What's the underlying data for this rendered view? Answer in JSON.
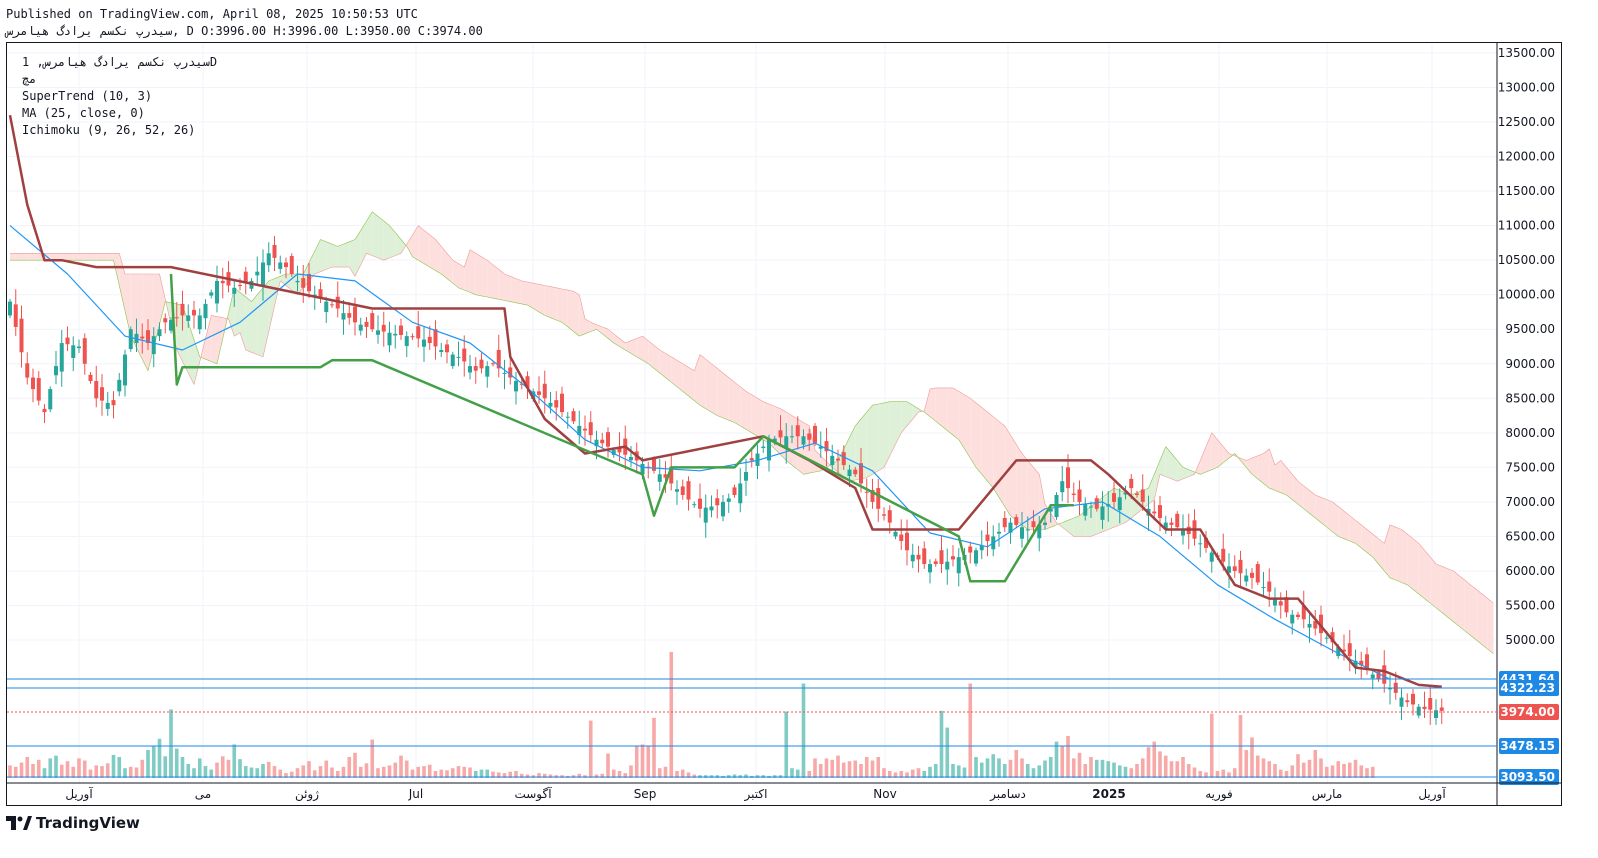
{
  "header": {
    "published": "Published on TradingView.com, April 08, 2025 10:50:53 UTC",
    "ohlc": "سیدرپ نکسم یرادگ هیامرس, D O:3996.00 H:3996.00 L:3950.00 C:3974.00"
  },
  "legend": {
    "symbol": "سیدرپ نکسم یرادگ هیامرس, 1D",
    "exchange": "مچ",
    "supertrend": "SuperTrend (10, 3)",
    "ma": "MA (25, close, 0)",
    "ichimoku": "Ichimoku (9, 26, 52, 26)"
  },
  "footer": {
    "brand": "TradingView"
  },
  "colors": {
    "up": "#26a69a",
    "down": "#ef5350",
    "supertrend_up": "#43a047",
    "supertrend_down": "#a04040",
    "ma": "#2196f3",
    "cloud_bull": "#dff0d8",
    "cloud_bear": "#fde0dd",
    "hline": "#1e88e5",
    "last_price": "#ef5350"
  },
  "chart_data": {
    "type": "candlestick",
    "y_ticks": [
      "13500.00",
      "13000.00",
      "12500.00",
      "12000.00",
      "11500.00",
      "11000.00",
      "10500.00",
      "10000.00",
      "9500.00",
      "9000.00",
      "8500.00",
      "8000.00",
      "7500.00",
      "7000.00",
      "6500.00",
      "6000.00",
      "5500.00",
      "5000.00"
    ],
    "y_range": [
      4300,
      13700
    ],
    "x_labels": [
      "آوریل",
      "می",
      "ژوئن",
      "Jul",
      "آگوست",
      "Sep",
      "اکتبر",
      "Nov",
      "دسامبر",
      "2025",
      "فوریه",
      "مارس",
      "آوریل"
    ],
    "price_labels": [
      {
        "value": 4431.64,
        "text": "4431.64",
        "kind": "line"
      },
      {
        "value": 4322.23,
        "text": "4322.23",
        "kind": "line"
      },
      {
        "value": 3974.0,
        "text": "3974.00",
        "kind": "last"
      },
      {
        "value": 3478.15,
        "text": "3478.15",
        "kind": "line"
      },
      {
        "value": 3093.5,
        "text": "3093.50",
        "kind": "line"
      }
    ],
    "close_path": [
      [
        0,
        9900
      ],
      [
        3,
        8800
      ],
      [
        6,
        8300
      ],
      [
        9,
        9300
      ],
      [
        12,
        9250
      ],
      [
        15,
        8500
      ],
      [
        18,
        8400
      ],
      [
        21,
        9500
      ],
      [
        24,
        9300
      ],
      [
        27,
        9600
      ],
      [
        30,
        9700
      ],
      [
        33,
        9700
      ],
      [
        36,
        10200
      ],
      [
        39,
        10100
      ],
      [
        42,
        10200
      ],
      [
        45,
        10600
      ],
      [
        48,
        10400
      ],
      [
        51,
        10100
      ],
      [
        54,
        9950
      ],
      [
        57,
        9800
      ],
      [
        60,
        9600
      ],
      [
        63,
        9500
      ],
      [
        66,
        9450
      ],
      [
        69,
        9400
      ],
      [
        72,
        9350
      ],
      [
        75,
        9200
      ],
      [
        78,
        9100
      ],
      [
        81,
        8900
      ],
      [
        84,
        9000
      ],
      [
        87,
        8800
      ],
      [
        90,
        8650
      ],
      [
        93,
        8500
      ],
      [
        96,
        8300
      ],
      [
        99,
        8100
      ],
      [
        102,
        7900
      ],
      [
        105,
        7750
      ],
      [
        108,
        7650
      ],
      [
        111,
        7500
      ],
      [
        114,
        7350
      ],
      [
        117,
        7100
      ],
      [
        120,
        6900
      ],
      [
        123,
        6950
      ],
      [
        126,
        7100
      ],
      [
        129,
        7600
      ],
      [
        132,
        7900
      ],
      [
        135,
        7950
      ],
      [
        138,
        7950
      ],
      [
        141,
        7800
      ],
      [
        144,
        7600
      ],
      [
        147,
        7400
      ],
      [
        150,
        7000
      ],
      [
        153,
        6700
      ],
      [
        156,
        6300
      ],
      [
        159,
        6100
      ],
      [
        162,
        6100
      ],
      [
        165,
        6200
      ],
      [
        168,
        6300
      ],
      [
        171,
        6500
      ],
      [
        174,
        6700
      ],
      [
        177,
        6600
      ],
      [
        180,
        6700
      ],
      [
        183,
        7300
      ],
      [
        186,
        7000
      ],
      [
        189,
        6900
      ],
      [
        192,
        7000
      ],
      [
        195,
        7200
      ],
      [
        198,
        6900
      ],
      [
        201,
        6700
      ],
      [
        204,
        6600
      ],
      [
        207,
        6400
      ],
      [
        210,
        6200
      ],
      [
        213,
        6000
      ],
      [
        216,
        5900
      ],
      [
        219,
        5700
      ],
      [
        222,
        5400
      ],
      [
        225,
        5300
      ],
      [
        228,
        5100
      ],
      [
        231,
        4900
      ],
      [
        234,
        4700
      ],
      [
        237,
        4500
      ],
      [
        240,
        4300
      ],
      [
        243,
        4100
      ],
      [
        246,
        4000
      ],
      [
        249,
        3974
      ]
    ],
    "ma_path": [
      [
        0,
        11000
      ],
      [
        10,
        10300
      ],
      [
        20,
        9400
      ],
      [
        30,
        9200
      ],
      [
        40,
        9600
      ],
      [
        50,
        10300
      ],
      [
        60,
        10200
      ],
      [
        70,
        9600
      ],
      [
        80,
        9300
      ],
      [
        90,
        8650
      ],
      [
        100,
        7900
      ],
      [
        110,
        7500
      ],
      [
        120,
        7450
      ],
      [
        130,
        7600
      ],
      [
        140,
        7850
      ],
      [
        150,
        7450
      ],
      [
        160,
        6550
      ],
      [
        170,
        6350
      ],
      [
        180,
        6900
      ],
      [
        190,
        7000
      ],
      [
        200,
        6500
      ],
      [
        210,
        5800
      ],
      [
        220,
        5300
      ],
      [
        230,
        4850
      ],
      [
        240,
        4431.64
      ]
    ],
    "supertrend_down": [
      [
        0,
        12600
      ],
      [
        3,
        11300
      ],
      [
        6,
        10500
      ],
      [
        9,
        10500
      ],
      [
        15,
        10400
      ],
      [
        28,
        10400
      ],
      [
        63,
        9800
      ],
      [
        80,
        9800
      ],
      [
        86,
        9800
      ],
      [
        87,
        9100
      ],
      [
        93,
        8200
      ],
      [
        100,
        7700
      ],
      [
        107,
        7800
      ],
      [
        110,
        7600
      ],
      [
        131,
        7950
      ],
      [
        139,
        7600
      ],
      [
        147,
        7200
      ],
      [
        150,
        6600
      ],
      [
        165,
        6600
      ],
      [
        175,
        7600
      ],
      [
        188,
        7600
      ],
      [
        191,
        7400
      ],
      [
        201,
        6600
      ],
      [
        207,
        6600
      ],
      [
        213,
        5800
      ],
      [
        219,
        5600
      ],
      [
        224,
        5600
      ],
      [
        229,
        5100
      ],
      [
        234,
        4600
      ],
      [
        239,
        4550
      ],
      [
        245,
        4350
      ],
      [
        249,
        4322.23
      ]
    ],
    "supertrend_up": [
      [
        28,
        10300
      ],
      [
        29,
        8700
      ],
      [
        30,
        8950
      ],
      [
        54,
        8950
      ],
      [
        56,
        9050
      ],
      [
        63,
        9050
      ],
      [
        110,
        7400
      ],
      [
        112,
        6800
      ],
      [
        115,
        7500
      ],
      [
        126,
        7500
      ],
      [
        131,
        7950
      ],
      [
        165,
        6500
      ],
      [
        167,
        5850
      ],
      [
        173,
        5850
      ],
      [
        181,
        6950
      ],
      [
        185,
        6950
      ]
    ],
    "volumes": [
      18,
      16,
      22,
      30,
      20,
      26,
      14,
      28,
      32,
      19,
      24,
      16,
      28,
      25,
      12,
      18,
      17,
      21,
      33,
      30,
      14,
      16,
      15,
      26,
      40,
      45,
      56,
      31,
      40,
      42,
      30,
      20,
      14,
      28,
      17,
      12,
      22,
      31,
      26,
      48,
      27,
      17,
      15,
      14,
      20,
      23,
      17,
      12,
      7,
      9,
      14,
      18,
      24,
      11,
      17,
      25,
      15,
      10,
      16,
      30,
      36,
      16,
      21,
      55,
      14,
      16,
      18,
      22,
      32,
      25,
      12,
      16,
      17,
      19,
      10,
      12,
      11,
      14,
      17,
      16,
      15,
      10,
      12,
      12,
      9,
      8,
      7,
      9,
      10,
      6,
      5,
      4,
      7,
      6,
      5,
      4,
      4,
      3,
      4,
      6,
      4,
      8,
      5,
      6,
      35,
      12,
      10,
      7,
      18,
      45,
      48,
      46,
      86,
      14,
      16,
      18,
      10,
      12,
      8,
      5,
      4,
      4,
      4,
      4,
      3,
      4,
      5,
      4,
      5,
      3,
      4,
      4,
      3,
      4,
      4,
      95,
      14,
      12,
      8,
      10,
      28,
      20,
      28,
      26,
      32,
      22,
      24,
      25,
      20,
      30,
      25,
      30,
      14,
      10,
      8,
      10,
      8,
      12,
      14,
      10,
      16,
      20,
      96,
      72,
      20,
      18,
      15,
      16,
      30,
      22,
      28,
      34,
      28,
      20,
      26,
      40,
      28,
      20,
      14,
      18,
      25,
      30,
      52,
      46,
      60,
      28,
      36,
      20,
      30,
      26,
      26,
      24,
      22,
      18,
      16,
      14,
      20,
      28,
      44,
      52,
      38,
      32,
      24,
      24,
      30,
      20,
      15,
      10,
      8,
      7,
      10,
      12,
      8,
      14,
      90,
      40,
      58,
      32,
      28,
      24,
      20,
      12,
      10,
      18,
      34,
      22,
      26,
      40,
      28,
      16,
      18,
      24,
      20,
      22,
      26,
      18,
      14,
      16
    ],
    "volume_spikes": [
      {
        "i": 28,
        "v": 98
      },
      {
        "i": 101,
        "v": 82
      },
      {
        "i": 115,
        "v": 180
      },
      {
        "i": 138,
        "v": 135
      },
      {
        "i": 167,
        "v": 135
      },
      {
        "i": 209,
        "v": 92
      }
    ]
  }
}
